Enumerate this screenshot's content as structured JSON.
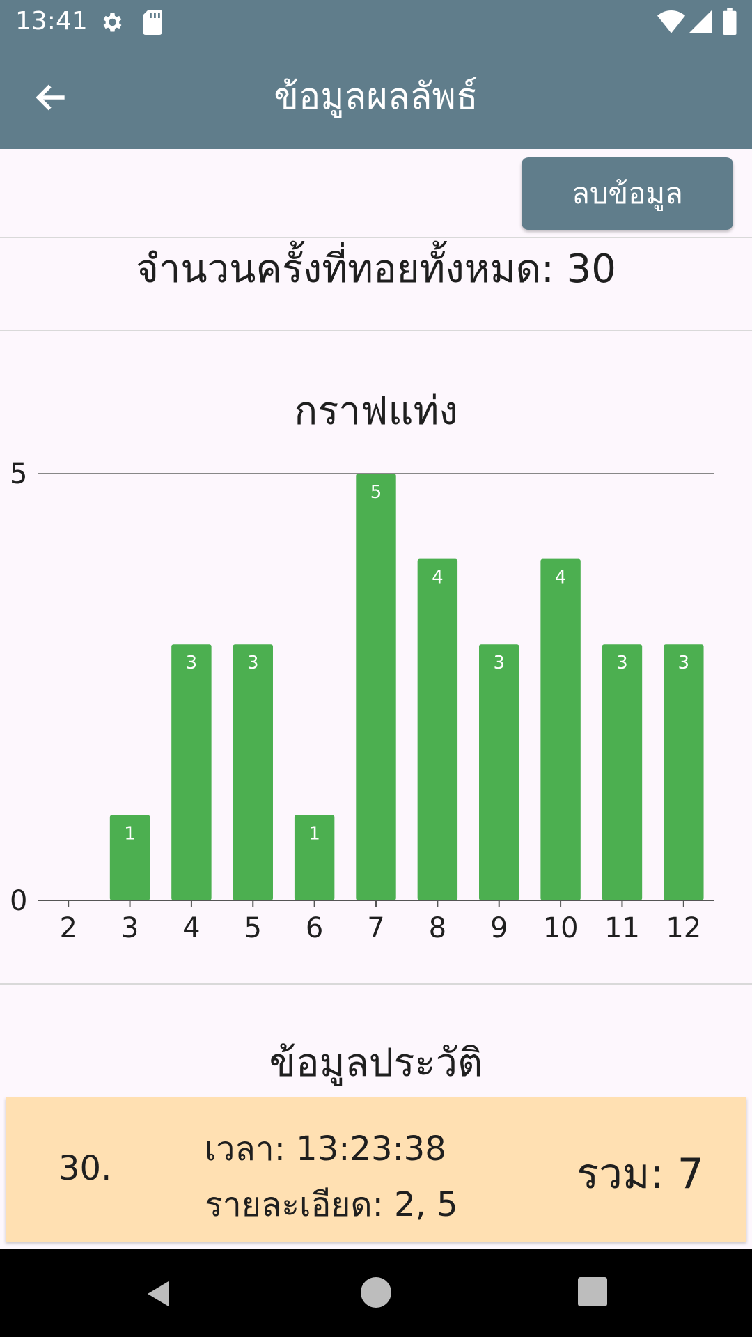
{
  "status_bar": {
    "time": "13:41",
    "icons": [
      "gear-icon",
      "sd-card-icon",
      "wifi-icon",
      "signal-icon",
      "battery-icon"
    ]
  },
  "app_bar": {
    "title": "ข้อมูลผลลัพธ์",
    "back_icon": "arrow-left-icon"
  },
  "actions": {
    "delete_label": "ลบข้อมูล"
  },
  "summary": {
    "total_label": "จำนวนครั้งที่ทอยทั้งหมด: 30"
  },
  "chart_section": {
    "title": "กราฟแท่ง"
  },
  "chart_data": {
    "type": "bar",
    "title": "กราฟแท่ง",
    "categories": [
      "2",
      "3",
      "4",
      "5",
      "6",
      "7",
      "8",
      "9",
      "10",
      "11",
      "12"
    ],
    "values": [
      0,
      1,
      3,
      3,
      1,
      5,
      4,
      3,
      4,
      3,
      3
    ],
    "ylim": [
      0,
      5
    ],
    "y_ticks": [
      "0",
      "5"
    ],
    "bar_color": "#4caf50",
    "data_labels": true,
    "grid": false
  },
  "history": {
    "title": "ข้อมูลประวัติ",
    "items": [
      {
        "index": "30.",
        "time": "เวลา: 13:23:38",
        "detail": "รายละเอียด: 2, 5",
        "sum": "รวม: 7"
      }
    ]
  },
  "colors": {
    "primary": "#607d8b",
    "background": "#fdf7fd",
    "bar": "#4caf50",
    "card": "#ffe0b2"
  }
}
